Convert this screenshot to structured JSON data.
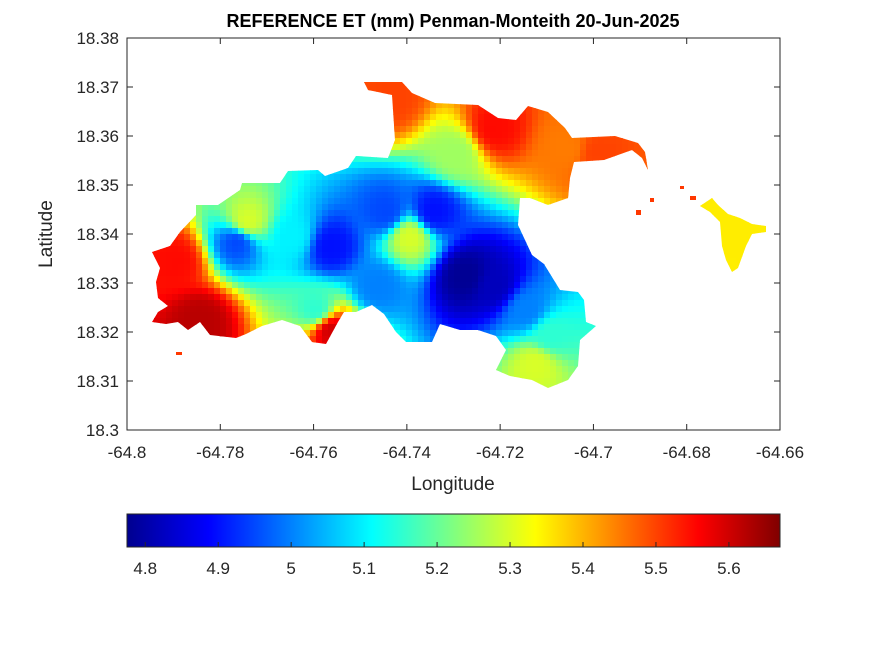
{
  "chart_data": {
    "type": "heatmap",
    "title": "REFERENCE ET (mm) Penman-Monteith 20-Jun-2025",
    "xlabel": "Longitude",
    "ylabel": "Latitude",
    "xlim": [
      -64.8,
      -64.66
    ],
    "ylim": [
      18.3,
      18.38
    ],
    "x_ticks": [
      -64.8,
      -64.78,
      -64.76,
      -64.74,
      -64.72,
      -64.7,
      -64.68,
      -64.66
    ],
    "x_tick_labels": [
      "-64.8",
      "-64.78",
      "-64.76",
      "-64.74",
      "-64.72",
      "-64.7",
      "-64.68",
      "-64.66"
    ],
    "y_ticks": [
      18.3,
      18.31,
      18.32,
      18.33,
      18.34,
      18.35,
      18.36,
      18.37,
      18.38
    ],
    "y_tick_labels": [
      "18.3",
      "18.31",
      "18.32",
      "18.33",
      "18.34",
      "18.35",
      "18.36",
      "18.37",
      "18.38"
    ],
    "grid": false,
    "colormap": "jet",
    "colorbar": {
      "orientation": "horizontal",
      "placement": "bottom",
      "range": [
        4.775,
        5.67
      ],
      "ticks": [
        4.8,
        4.9,
        5,
        5.1,
        5.2,
        5.3,
        5.4,
        5.5,
        5.6
      ],
      "tick_labels": [
        "4.8",
        "4.9",
        "5",
        "5.1",
        "5.2",
        "5.3",
        "5.4",
        "5.5",
        "5.6"
      ]
    },
    "value_range": [
      4.78,
      5.65
    ],
    "cells": [
      {
        "lon": -64.79,
        "lat": 18.335,
        "value": 5.55
      },
      {
        "lon": -64.785,
        "lat": 18.323,
        "value": 5.62
      },
      {
        "lon": -64.775,
        "lat": 18.343,
        "value": 5.3
      },
      {
        "lon": -64.777,
        "lat": 18.339,
        "value": 4.95
      },
      {
        "lon": -64.765,
        "lat": 18.34,
        "value": 5.1
      },
      {
        "lon": -64.76,
        "lat": 18.325,
        "value": 5.15
      },
      {
        "lon": -64.757,
        "lat": 18.338,
        "value": 4.9
      },
      {
        "lon": -64.757,
        "lat": 18.321,
        "value": 5.6
      },
      {
        "lon": -64.745,
        "lat": 18.345,
        "value": 4.95
      },
      {
        "lon": -64.747,
        "lat": 18.33,
        "value": 5.0
      },
      {
        "lon": -64.74,
        "lat": 18.34,
        "value": 5.3
      },
      {
        "lon": -64.735,
        "lat": 18.345,
        "value": 4.9
      },
      {
        "lon": -64.728,
        "lat": 18.332,
        "value": 4.78
      },
      {
        "lon": -64.722,
        "lat": 18.33,
        "value": 4.82
      },
      {
        "lon": -64.715,
        "lat": 18.325,
        "value": 5.0
      },
      {
        "lon": -64.71,
        "lat": 18.32,
        "value": 5.15
      },
      {
        "lon": -64.713,
        "lat": 18.314,
        "value": 5.3
      },
      {
        "lon": -64.73,
        "lat": 18.357,
        "value": 5.25
      },
      {
        "lon": -64.722,
        "lat": 18.362,
        "value": 5.55
      },
      {
        "lon": -64.744,
        "lat": 18.368,
        "value": 5.5
      },
      {
        "lon": -64.706,
        "lat": 18.358,
        "value": 5.45
      },
      {
        "lon": -64.7,
        "lat": 18.357,
        "value": 5.5
      },
      {
        "lon": -64.668,
        "lat": 18.34,
        "value": 5.35
      }
    ]
  }
}
